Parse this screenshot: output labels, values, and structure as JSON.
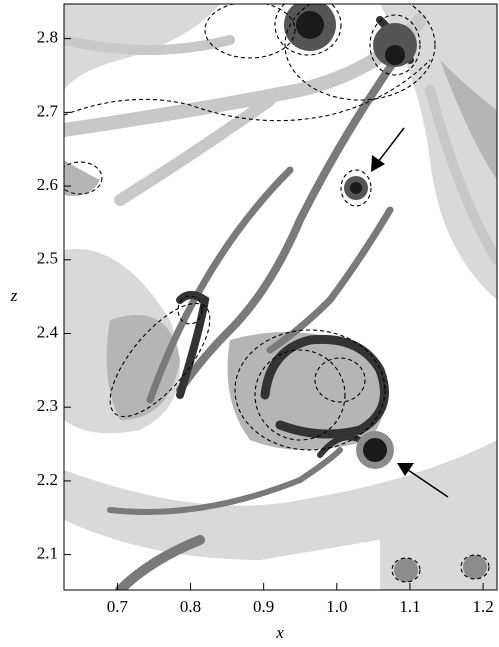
{
  "chart_data": {
    "type": "contour",
    "xlabel": "x",
    "ylabel": "z",
    "xlim": [
      0.627,
      1.219
    ],
    "ylim": [
      2.052,
      2.847
    ],
    "xticks": [
      0.7,
      0.8,
      0.9,
      {
        "value": 1,
        "label": "1.0"
      },
      1.1,
      1.2
    ],
    "yticks": [
      2.1,
      2.2,
      2.3,
      2.4,
      2.5,
      2.6,
      2.7,
      2.8
    ]
  }
}
